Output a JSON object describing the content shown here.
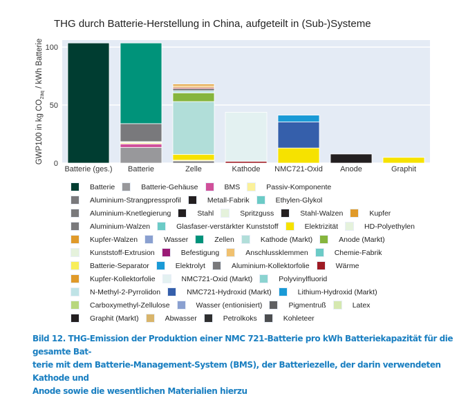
{
  "chart_data": {
    "type": "bar",
    "stacked": true,
    "title": "THG durch Batterie-Herstellung in China, aufgeteilt in (Sub-)Systeme",
    "xlabel": "",
    "ylabel": {
      "main": "GWP100 in kg CO",
      "sub": "2äq",
      "tail": " / kWh Batterie"
    },
    "ylim": [
      0,
      106
    ],
    "yticks": [
      0,
      50,
      100
    ],
    "grid": true,
    "legend_placement": "bottom",
    "categories": [
      "Batterie (ges.)",
      "Batterie",
      "Zelle",
      "Kathode",
      "NMC721-Oxid",
      "Anode",
      "Graphit"
    ],
    "stacks": [
      [
        {
          "name": "Batterie",
          "value": 103.5
        }
      ],
      [
        {
          "name": "Batterie-Gehäuse",
          "value": 13.5
        },
        {
          "name": "BMS",
          "value": 3
        },
        {
          "name": "Passiv-Komponente",
          "value": 1
        },
        {
          "name": "Spritzguss",
          "value": 1
        },
        {
          "name": "Aluminium-Strangpressprofil",
          "value": 15.5
        },
        {
          "name": "Zellen",
          "value": 69.5
        }
      ],
      [
        {
          "name": "Aluminium-Kollektorfolie",
          "value": 1.8
        },
        {
          "name": "Batterie-Separator",
          "value": 0.7
        },
        {
          "name": "Elektrizität",
          "value": 5
        },
        {
          "name": "Kathode (Markt)",
          "value": 45.5
        },
        {
          "name": "Anode (Markt)",
          "value": 7.5
        },
        {
          "name": "N-Methyl-2-Pyrrolidon",
          "value": 2
        },
        {
          "name": "Pigmentruß",
          "value": 1.5
        },
        {
          "name": "Wärme",
          "value": 1
        },
        {
          "name": "Anschlussklemmen",
          "value": 1.5
        },
        {
          "name": "Kupfer-Kollektorfolie",
          "value": 1.5
        }
      ],
      [
        {
          "name": "Wärme",
          "value": 1.5
        },
        {
          "name": "NMC721-Oxid (Markt)",
          "value": 42.3
        }
      ],
      [
        {
          "name": "Elektrizität",
          "value": 13
        },
        {
          "name": "NMC721-Hydroxid (Markt)",
          "value": 22.5
        },
        {
          "name": "Lithium-Hydroxid (Markt)",
          "value": 5.8
        }
      ],
      [
        {
          "name": "Graphit (Markt)",
          "value": 7.8
        }
      ],
      [
        {
          "name": "Elektrizität",
          "value": 4.9
        }
      ]
    ],
    "legend_rows": [
      [
        {
          "name": "Batterie",
          "color": "#003d31"
        },
        {
          "name": "Batterie-Gehäuse",
          "color": "#98989b"
        },
        {
          "name": "BMS",
          "color": "#d0509a"
        },
        {
          "name": "Passiv-Komponente",
          "color": "#fbf19a"
        }
      ],
      [
        {
          "name": "Aluminium-Strangpressprofil",
          "color": "#79797c"
        },
        {
          "name": "Metall-Fabrik",
          "color": "#231f20"
        },
        {
          "name": "Ethylen-Glykol",
          "color": "#6ccbc6"
        }
      ],
      [
        {
          "name": "Aluminium-Knetlegierung",
          "color": "#79797c"
        },
        {
          "name": "Stahl",
          "color": "#231f20"
        },
        {
          "name": "Spritzguss",
          "color": "#e5f2dc"
        },
        {
          "name": "Stahl-Walzen",
          "color": "#231f20"
        },
        {
          "name": "Kupfer",
          "color": "#e09a2a"
        }
      ],
      [
        {
          "name": "Aluminium-Walzen",
          "color": "#79797c"
        },
        {
          "name": "Glasfaser-verstärkter Kunststoff",
          "color": "#6ccbc6"
        },
        {
          "name": "Elektrizität",
          "color": "#f6e200"
        },
        {
          "name": "HD-Polyethylen",
          "color": "#e5f2dc"
        }
      ],
      [
        {
          "name": "Kupfer-Walzen",
          "color": "#e09a2a"
        },
        {
          "name": "Wasser",
          "color": "#8aa0d0"
        },
        {
          "name": "Zellen",
          "color": "#00937a"
        },
        {
          "name": "Kathode (Markt)",
          "color": "#b1ded9"
        },
        {
          "name": "Anode (Markt)",
          "color": "#86b53d"
        }
      ],
      [
        {
          "name": "Kunststoff-Extrusion",
          "color": "#e5f2dc"
        },
        {
          "name": "Befestigung",
          "color": "#9b1c77"
        },
        {
          "name": "Anschlussklemmen",
          "color": "#f0c170"
        },
        {
          "name": "Chemie-Fabrik",
          "color": "#6ccbc6"
        }
      ],
      [
        {
          "name": "Batterie-Separator",
          "color": "#f8ee5a"
        },
        {
          "name": "Elektrolyt",
          "color": "#1a9ad6"
        },
        {
          "name": "Aluminium-Kollektorfolie",
          "color": "#79797c"
        },
        {
          "name": "Wärme",
          "color": "#9e1b24"
        }
      ],
      [
        {
          "name": "Kupfer-Kollektorfolie",
          "color": "#e09a2a"
        },
        {
          "name": "NMC721-Oxid (Markt)",
          "color": "#e3f1f1"
        },
        {
          "name": "Polyvinylfluorid",
          "color": "#8bd3d0"
        }
      ],
      [
        {
          "name": "N-Methyl-2-Pyrrolidon",
          "color": "#bfe3e6"
        },
        {
          "name": "NMC721-Hydroxid (Markt)",
          "color": "#355fab"
        },
        {
          "name": "Lithium-Hydroxid (Markt)",
          "color": "#1a9ad6"
        }
      ],
      [
        {
          "name": "Carboxymethyl-Zellulose",
          "color": "#b7d77e"
        },
        {
          "name": "Wasser (entionisiert)",
          "color": "#8aa0d0"
        },
        {
          "name": "Pigmentruß",
          "color": "#5f6062"
        },
        {
          "name": "Latex",
          "color": "#d5e8b0"
        }
      ],
      [
        {
          "name": "Graphit (Markt)",
          "color": "#231f20"
        },
        {
          "name": "Abwasser",
          "color": "#d9b56b"
        },
        {
          "name": "Petrolkoks",
          "color": "#2f2f30"
        },
        {
          "name": "Kohleteer",
          "color": "#4d4e50"
        }
      ]
    ]
  },
  "caption": {
    "lines": [
      "Bild 12. THG-Emission der Produktion einer NMC 721-Batterie pro kWh Batteriekapazität für die gesamte Bat-",
      "terie mit dem Batterie-Management-System (BMS), der Batteriezelle, der darin verwendeten Kathode und",
      "Anode sowie die wesentlichen Materialien hierzu"
    ]
  }
}
